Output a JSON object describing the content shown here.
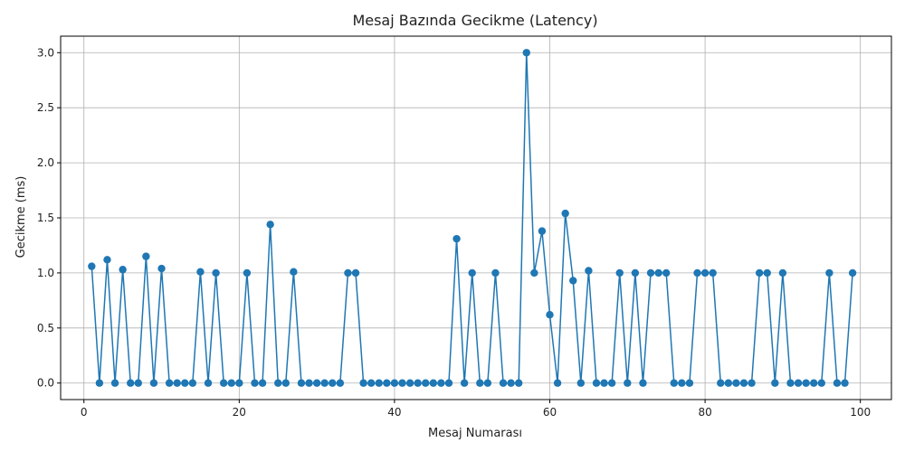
{
  "chart_data": {
    "type": "line",
    "title": "Mesaj Bazında Gecikme (Latency)",
    "xlabel": "Mesaj Numarası",
    "ylabel": "Gecikme (ms)",
    "xlim": [
      -3,
      104
    ],
    "ylim": [
      -0.15,
      3.15
    ],
    "xticks": [
      0,
      20,
      40,
      60,
      80,
      100
    ],
    "yticks": [
      0.0,
      0.5,
      1.0,
      1.5,
      2.0,
      2.5,
      3.0
    ],
    "xtick_labels": [
      "0",
      "20",
      "40",
      "60",
      "80",
      "100"
    ],
    "ytick_labels": [
      "0.0",
      "0.5",
      "1.0",
      "1.5",
      "2.0",
      "2.5",
      "3.0"
    ],
    "grid": true,
    "series": [
      {
        "color": "#1f77b4",
        "marker": "circle",
        "x": [
          1,
          2,
          3,
          4,
          5,
          6,
          7,
          8,
          9,
          10,
          11,
          12,
          13,
          14,
          15,
          16,
          17,
          18,
          19,
          20,
          21,
          22,
          23,
          24,
          25,
          26,
          27,
          28,
          29,
          30,
          31,
          32,
          33,
          34,
          35,
          36,
          37,
          38,
          39,
          40,
          41,
          42,
          43,
          44,
          45,
          46,
          47,
          48,
          49,
          50,
          51,
          52,
          53,
          54,
          55,
          56,
          57,
          58,
          59,
          60,
          61,
          62,
          63,
          64,
          65,
          66,
          67,
          68,
          69,
          70,
          71,
          72,
          73,
          74,
          75,
          76,
          77,
          78,
          79,
          80,
          81,
          82,
          83,
          84,
          85,
          86,
          87,
          88,
          89,
          90,
          91,
          92,
          93,
          94,
          95,
          96,
          97,
          98,
          99
        ],
        "y": [
          1.06,
          0,
          1.12,
          0,
          1.03,
          0,
          0,
          1.15,
          0,
          1.04,
          0,
          0,
          0,
          0,
          1.01,
          0,
          1.0,
          0,
          0,
          0,
          1.0,
          0,
          0,
          1.44,
          0,
          0,
          1.01,
          0,
          0,
          0,
          0,
          0,
          0,
          1.0,
          1.0,
          0,
          0,
          0,
          0,
          0,
          0,
          0,
          0,
          0,
          0,
          0,
          0,
          1.31,
          0,
          1.0,
          0,
          0,
          1.0,
          0,
          0,
          0,
          3.0,
          1.0,
          1.38,
          0.62,
          0,
          1.54,
          0.93,
          0,
          1.02,
          0,
          0,
          0,
          1.0,
          0,
          1.0,
          0,
          1.0,
          1.0,
          1.0,
          0,
          0,
          0,
          1.0,
          1.0,
          1.0,
          0,
          0,
          0,
          0,
          0,
          1.0,
          1.0,
          0,
          1.0,
          0,
          0,
          0,
          0,
          0,
          1.0,
          0,
          0,
          1.0
        ]
      }
    ]
  }
}
